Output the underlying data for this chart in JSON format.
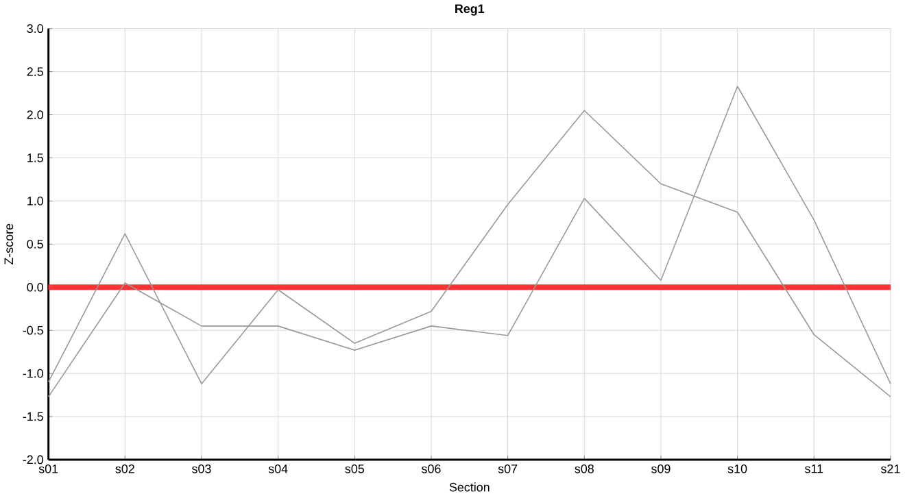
{
  "chart_data": {
    "type": "line",
    "title": "Reg1",
    "xlabel": "Section",
    "ylabel": "Z-score",
    "categories": [
      "s01",
      "s02",
      "s03",
      "s04",
      "s05",
      "s06",
      "s07",
      "s08",
      "s09",
      "s10",
      "s11",
      "s21"
    ],
    "series": [
      {
        "color": "#999999",
        "values": [
          -1.1,
          0.62,
          -1.12,
          -0.03,
          -0.65,
          -0.28,
          0.96,
          2.05,
          1.2,
          0.87,
          -0.55,
          -1.27
        ]
      },
      {
        "color": "#999999",
        "values": [
          -1.27,
          0.05,
          -0.45,
          -0.45,
          -0.73,
          -0.45,
          -0.56,
          1.03,
          0.08,
          2.33,
          0.78,
          -1.12
        ]
      }
    ],
    "ylim": [
      -2.0,
      3.0
    ],
    "yticks": [
      {
        "value": -2,
        "label": "-2.0"
      },
      {
        "value": -1.5,
        "label": "-1.5"
      },
      {
        "value": -1,
        "label": "-1.0"
      },
      {
        "value": -0.5,
        "label": "-0.5"
      },
      {
        "value": 0,
        "label": "0.0"
      },
      {
        "value": 0.5,
        "label": "0.5"
      },
      {
        "value": 1,
        "label": "1.0"
      },
      {
        "value": 1.5,
        "label": "1.5"
      },
      {
        "value": 2,
        "label": "2.0"
      },
      {
        "value": 2.5,
        "label": "2.5"
      },
      {
        "value": 3,
        "label": "3.0"
      }
    ],
    "grid": true,
    "marker": "none",
    "line_style": "solid",
    "ref_lines": [
      {
        "axis": "y",
        "value": 0,
        "color": "#ff3333"
      }
    ]
  }
}
